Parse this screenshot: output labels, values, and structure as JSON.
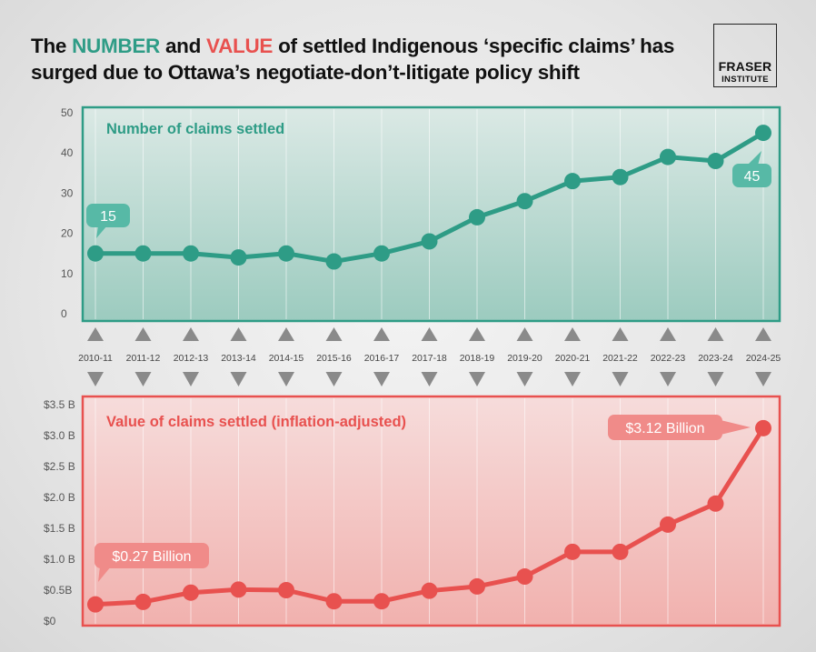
{
  "title": {
    "part1": "The ",
    "number_word": "NUMBER",
    "part2": " and ",
    "value_word": "VALUE",
    "part3": " of settled Indigenous ‘specific claims’ has surged due to Ottawa’s negotiate-don’t-litigate policy shift"
  },
  "logo": {
    "line1": "FRASER",
    "line2": "INSTITUTE"
  },
  "colors": {
    "teal": "#2e9c86",
    "red": "#e8514f",
    "arrow": "#8a8a8a"
  },
  "chart_data": [
    {
      "type": "line",
      "title": "Number of claims settled",
      "categories": [
        "2010-11",
        "2011-12",
        "2012-13",
        "2013-14",
        "2014-15",
        "2015-16",
        "2016-17",
        "2017-18",
        "2018-19",
        "2019-20",
        "2020-21",
        "2021-22",
        "2022-23",
        "2023-24",
        "2024-25"
      ],
      "values": [
        15,
        15,
        15,
        14,
        15,
        13,
        15,
        18,
        24,
        28,
        33,
        34,
        39,
        38,
        45
      ],
      "ylim": [
        0,
        50
      ],
      "yticks": [
        "0",
        "10",
        "20",
        "30",
        "40",
        "50"
      ],
      "grid": "vertical",
      "annotations": [
        {
          "category": "2010-11",
          "text": "15"
        },
        {
          "category": "2024-25",
          "text": "45"
        }
      ]
    },
    {
      "type": "line",
      "title": "Value of claims settled (inflation-adjusted)",
      "categories": [
        "2010-11",
        "2011-12",
        "2012-13",
        "2013-14",
        "2014-15",
        "2015-16",
        "2016-17",
        "2017-18",
        "2018-19",
        "2019-20",
        "2020-21",
        "2021-22",
        "2022-23",
        "2023-24",
        "2024-25"
      ],
      "values": [
        0.27,
        0.31,
        0.46,
        0.51,
        0.5,
        0.32,
        0.32,
        0.49,
        0.56,
        0.72,
        1.12,
        1.12,
        1.56,
        1.9,
        3.12
      ],
      "ylim": [
        0,
        3.5
      ],
      "yticks": [
        "$0",
        "$0.5B",
        "$1.0 B",
        "$1.5 B",
        "$2.0 B",
        "$2.5 B",
        "$3.0 B",
        "$3.5 B"
      ],
      "grid": "vertical",
      "annotations": [
        {
          "category": "2010-11",
          "text": "$0.27 Billion"
        },
        {
          "category": "2024-25",
          "text": "$3.12 Billion"
        }
      ]
    }
  ]
}
